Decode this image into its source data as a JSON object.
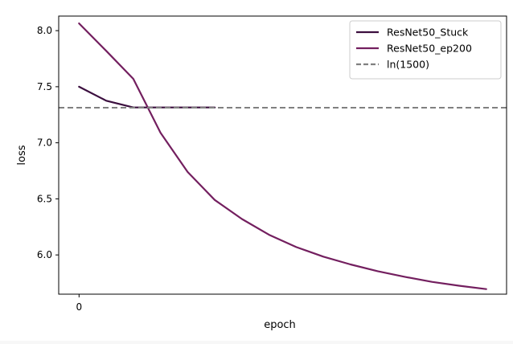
{
  "chart_data": {
    "type": "line",
    "title": "",
    "xlabel": "epoch",
    "ylabel": "loss",
    "x_ticks": [
      0
    ],
    "x_tick_labels": [
      "0"
    ],
    "y_ticks": [
      6.0,
      6.5,
      7.0,
      7.5,
      8.0
    ],
    "y_tick_labels": [
      "6.0",
      "6.5",
      "7.0",
      "7.5",
      "8.0"
    ],
    "xlim": [
      -0.75,
      15.75
    ],
    "ylim": [
      5.65,
      8.13
    ],
    "grid": false,
    "legend_position": "top-right",
    "series": [
      {
        "name": "ResNet50_Stuck",
        "color": "#3b0f3f",
        "style": "solid",
        "x": [
          0,
          1,
          2,
          3,
          4,
          5
        ],
        "y": [
          7.5,
          7.375,
          7.315,
          7.315,
          7.315,
          7.315
        ]
      },
      {
        "name": "ResNet50_ep200",
        "color": "#731f5f",
        "style": "solid",
        "x": [
          0,
          1,
          2,
          3,
          4,
          5,
          6,
          7,
          8,
          9,
          10,
          11,
          12,
          13,
          14,
          15
        ],
        "y": [
          8.065,
          7.82,
          7.57,
          7.09,
          6.74,
          6.49,
          6.32,
          6.18,
          6.07,
          5.985,
          5.915,
          5.855,
          5.805,
          5.76,
          5.725,
          5.695
        ]
      },
      {
        "name": "ln(1500)",
        "color": "#808080",
        "style": "dashed",
        "hline": 7.313
      }
    ]
  }
}
